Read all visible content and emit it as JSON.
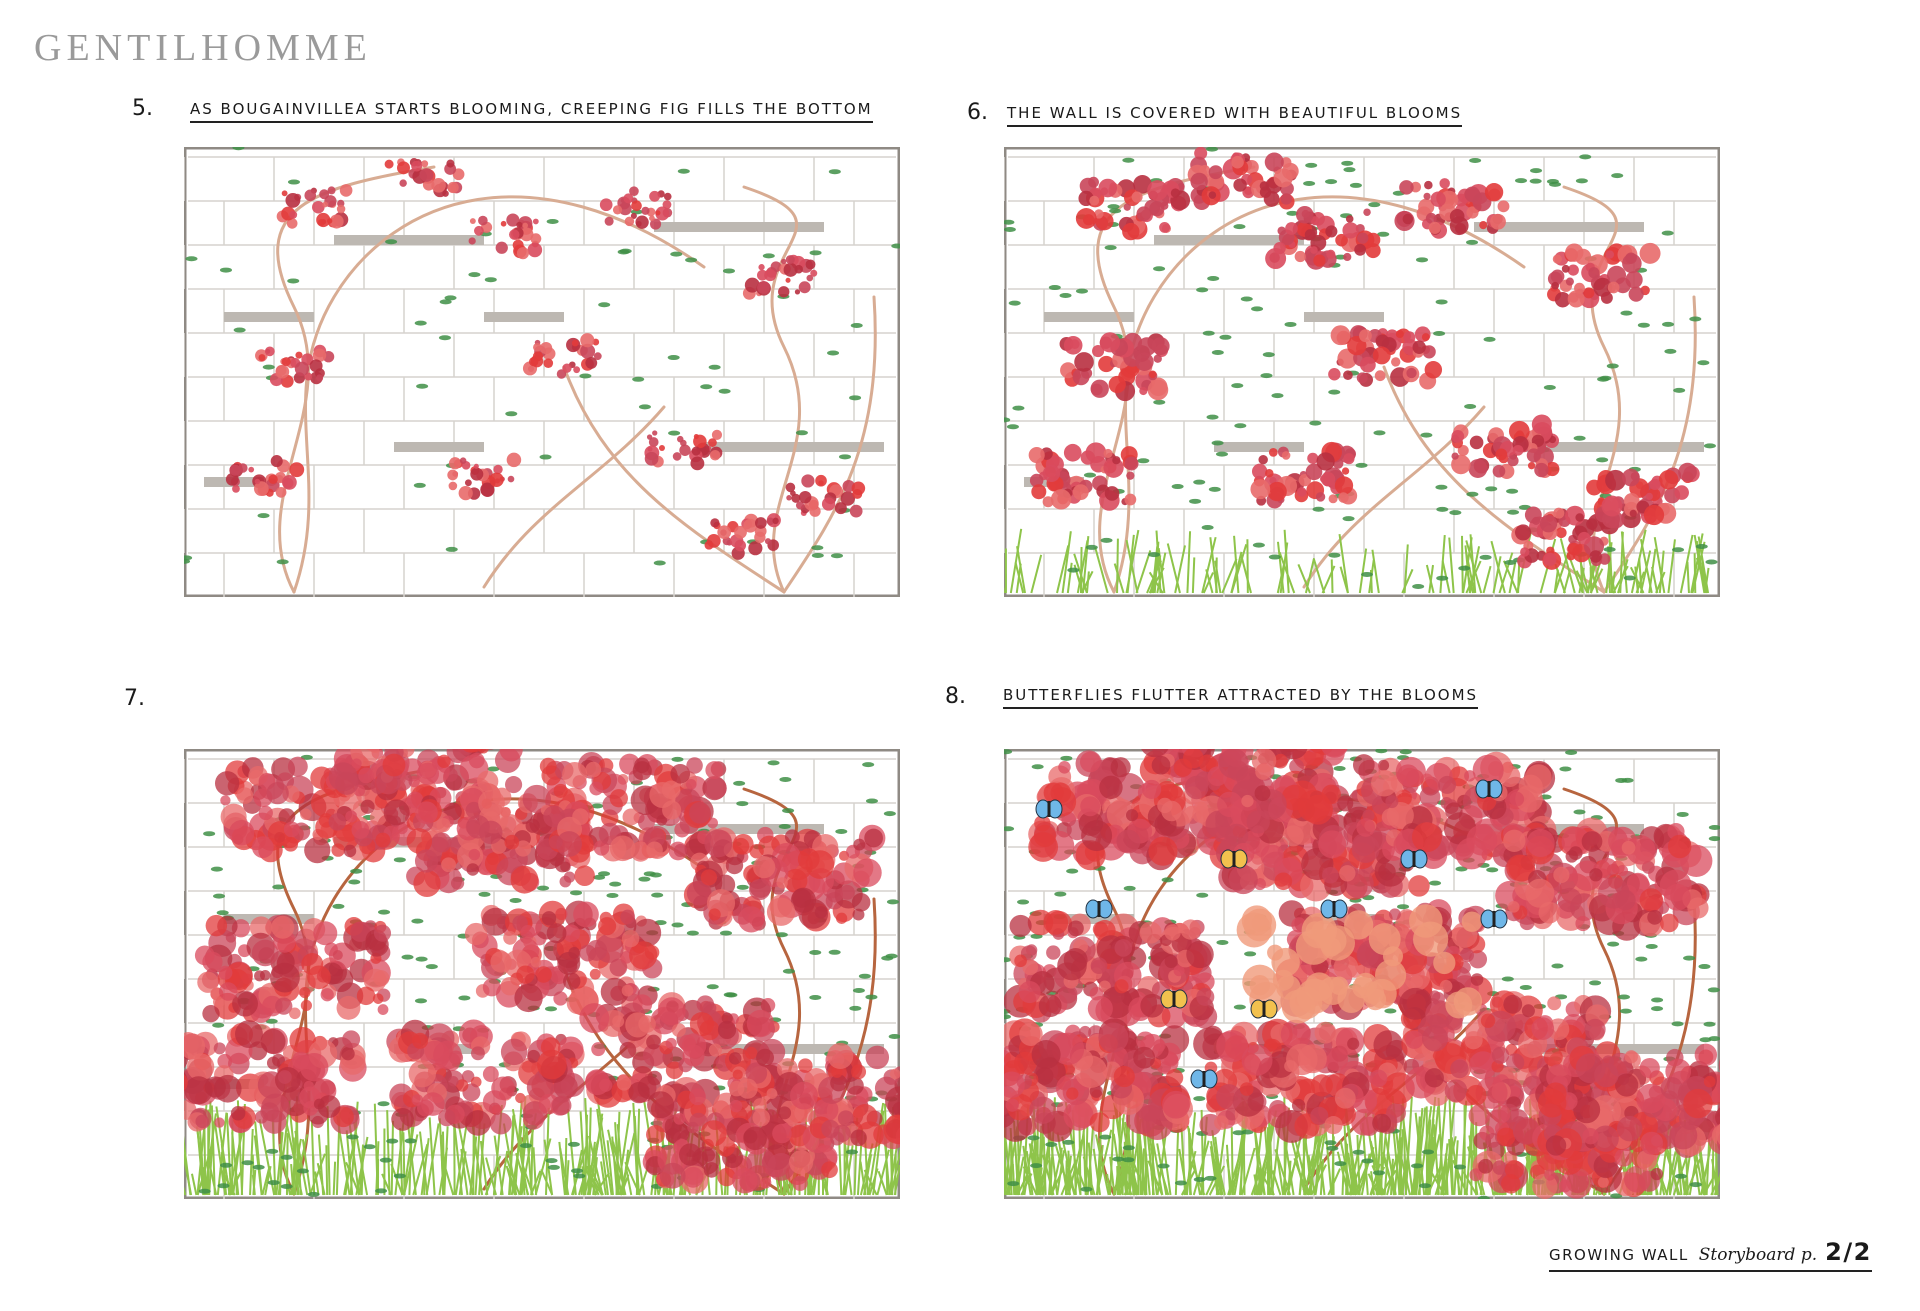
{
  "header": {
    "brand": "GENTILHOMME"
  },
  "panels": [
    {
      "number": "5.",
      "caption": "AS BOUGAINVILLEA STARTS BLOOMING, CREEPING FIG FILLS THE BOTTOM"
    },
    {
      "number": "6.",
      "caption": "THE WALL IS COVERED WITH BEAUTIFUL BLOOMS"
    },
    {
      "number": "7."
    },
    {
      "number": "8.",
      "caption": "BUTTERFLIES FLUTTER ATTRACTED BY THE BLOOMS"
    }
  ],
  "footer": {
    "title": "GROWING WALL",
    "subtitle": "Storyboard p.",
    "page": "2/2"
  }
}
